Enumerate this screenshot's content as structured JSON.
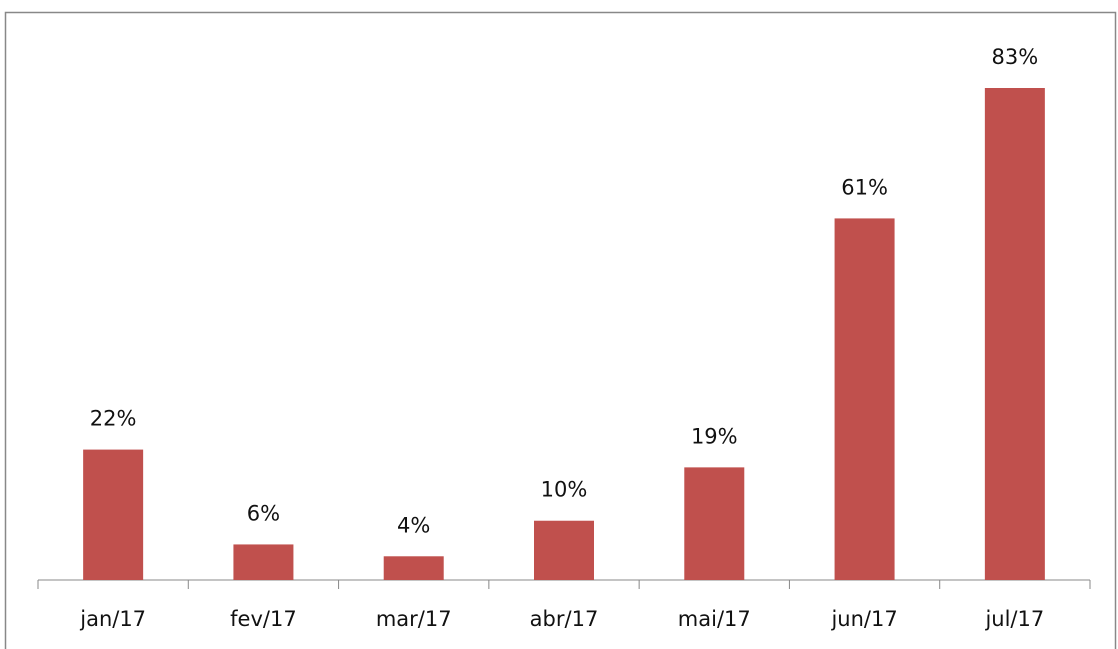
{
  "chart_data": {
    "type": "bar",
    "categories": [
      "jan/17",
      "fev/17",
      "mar/17",
      "abr/17",
      "mai/17",
      "jun/17",
      "jul/17"
    ],
    "values": [
      22,
      6,
      4,
      10,
      19,
      61,
      83
    ],
    "value_labels": [
      "22%",
      "6%",
      "4%",
      "10%",
      "19%",
      "61%",
      "83%"
    ],
    "color": "#c0504d"
  }
}
